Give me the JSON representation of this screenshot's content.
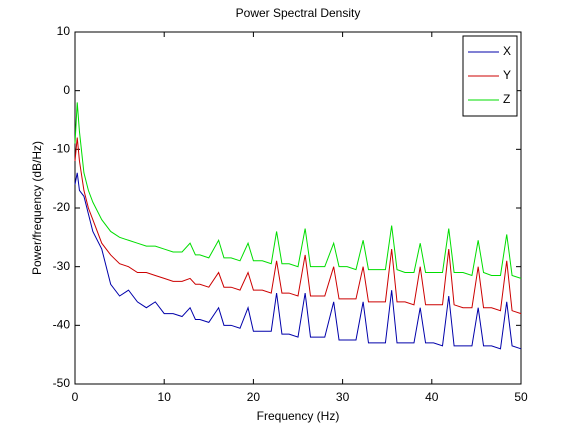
{
  "chart_data": {
    "type": "line",
    "title": "Power Spectral Density",
    "x_label": "Frequency (Hz)",
    "y_label": "Power/frequency (dB/Hz)",
    "xlim": [
      0,
      50
    ],
    "ylim": [
      -50,
      10
    ],
    "xticks": [
      0,
      10,
      20,
      30,
      40,
      50
    ],
    "yticks": [
      -50,
      -40,
      -30,
      -20,
      -10,
      0,
      10
    ],
    "grid": false,
    "legend": "upper right",
    "x": [
      0,
      0.25,
      0.5,
      1,
      1.5,
      2,
      3,
      4,
      5,
      6,
      7,
      8,
      9,
      10,
      11,
      12,
      12.9,
      13.5,
      14,
      15,
      16.1,
      16.7,
      17.5,
      18.5,
      19.4,
      20,
      21,
      22,
      22.6,
      23.2,
      24,
      25,
      25.8,
      26.4,
      27,
      28,
      29,
      29.6,
      30.5,
      31.5,
      32.3,
      32.9,
      33.8,
      34.8,
      35.5,
      36.1,
      37,
      38,
      38.7,
      39.3,
      40.2,
      41.2,
      41.9,
      42.5,
      43.5,
      44.5,
      45.2,
      45.8,
      46.7,
      47.7,
      48.4,
      49,
      50
    ],
    "series": [
      {
        "name": "X",
        "color": "#0000aa",
        "values": [
          -16,
          -14,
          -17,
          -18,
          -21,
          -24,
          -27,
          -33,
          -35,
          -34,
          -36,
          -37,
          -36,
          -38,
          -38,
          -38.5,
          -37,
          -39,
          -39,
          -39.5,
          -37,
          -40,
          -40,
          -40.5,
          -37,
          -41,
          -41,
          -41,
          -34.5,
          -41.5,
          -41.5,
          -42,
          -34.5,
          -42,
          -42,
          -42,
          -36,
          -42.5,
          -42.5,
          -42.5,
          -36,
          -43,
          -43,
          -43,
          -34,
          -43,
          -43,
          -43,
          -37,
          -43,
          -43,
          -43.5,
          -35,
          -43.5,
          -43.5,
          -43.5,
          -37,
          -43.5,
          -43.5,
          -44,
          -36,
          -43.5,
          -44
        ]
      },
      {
        "name": "Y",
        "color": "#cc0000",
        "values": [
          -12,
          -8,
          -12,
          -17,
          -20,
          -22,
          -26,
          -28,
          -29.5,
          -30,
          -31,
          -31,
          -31.5,
          -32,
          -32.5,
          -32.5,
          -32,
          -33,
          -33,
          -33.5,
          -31,
          -33.5,
          -33.5,
          -34,
          -31,
          -34,
          -34,
          -34.5,
          -29,
          -34.5,
          -34.5,
          -35,
          -28,
          -35,
          -35,
          -35,
          -30,
          -35.5,
          -35.5,
          -35.5,
          -30,
          -36,
          -36,
          -36,
          -27,
          -36,
          -36,
          -36.5,
          -30,
          -36.5,
          -36.5,
          -36.5,
          -27,
          -36.5,
          -37,
          -37,
          -30,
          -37,
          -37,
          -37.5,
          -29,
          -37.5,
          -38
        ]
      },
      {
        "name": "Z",
        "color": "#00dd00",
        "values": [
          -9,
          -2,
          -7,
          -14,
          -17,
          -19,
          -22,
          -24,
          -25,
          -25.5,
          -26,
          -26.5,
          -26.5,
          -27,
          -27.5,
          -27.5,
          -26,
          -28,
          -28,
          -28.5,
          -25.5,
          -28.5,
          -28.5,
          -29,
          -26,
          -29,
          -29,
          -29.5,
          -24,
          -29.5,
          -29.5,
          -30,
          -23.5,
          -30,
          -30,
          -30,
          -26,
          -30,
          -30,
          -30.5,
          -25.5,
          -30.5,
          -30.5,
          -30.5,
          -23,
          -30.5,
          -31,
          -31,
          -26,
          -31,
          -31,
          -31,
          -23.5,
          -31,
          -31,
          -31.5,
          -25.5,
          -31,
          -31.5,
          -31.5,
          -24.5,
          -31.5,
          -32
        ]
      }
    ]
  }
}
